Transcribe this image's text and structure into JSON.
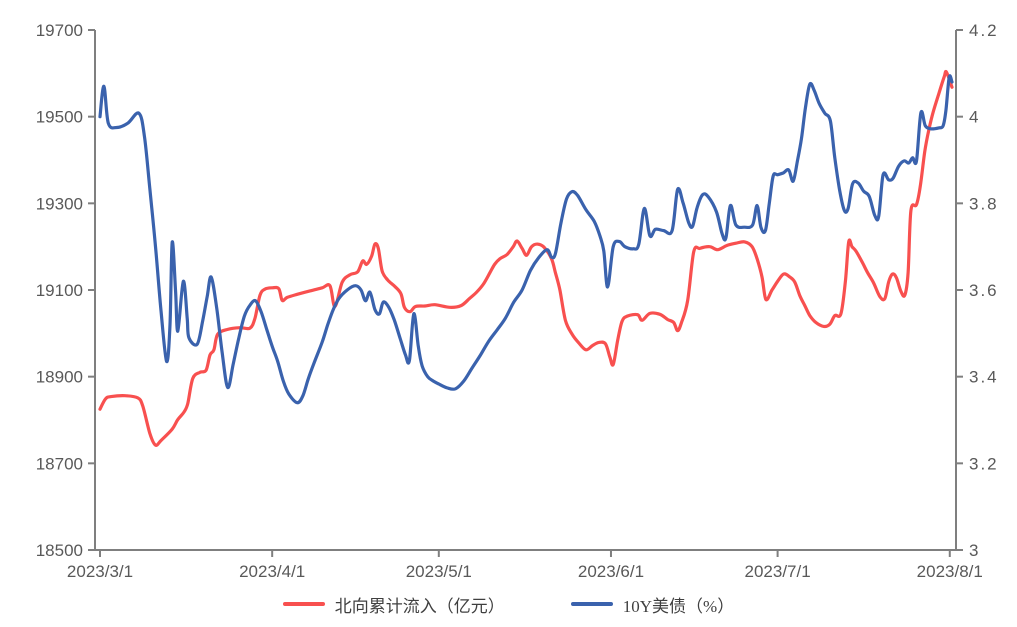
{
  "page": {
    "background": "#ffffff",
    "title": ""
  },
  "colors": {
    "axis_line": "#7f7f7f",
    "tick_label": "#595959",
    "legend_text": "#3f3f3f",
    "series_red": "#f8504f",
    "series_blue": "#3a62ad"
  },
  "legend": {
    "items": [
      {
        "label": "北向累计流入（亿元）",
        "color": "#f8504f"
      },
      {
        "label": "10Y美债（%）",
        "color": "#3a62ad"
      }
    ]
  },
  "chart_data": {
    "type": "line",
    "title": "",
    "xlabel": "",
    "ylabel_left": "",
    "ylabel_right": "",
    "grid": false,
    "legend_position": "bottom",
    "x_axis": {
      "tick_labels": [
        "2023/3/1",
        "2023/4/1",
        "2023/5/1",
        "2023/6/1",
        "2023/7/1",
        "2023/8/1"
      ],
      "tick_days": [
        0,
        31,
        61,
        92,
        122,
        153
      ],
      "domain_days": [
        0,
        153.4
      ]
    },
    "left_axis": {
      "min": 18500,
      "max": 19700,
      "tick_values": [
        18500,
        18700,
        18900,
        19100,
        19300,
        19500,
        19700
      ],
      "tick_labels": [
        "18500",
        "18700",
        "18900",
        "19100",
        "19300",
        "19500",
        "19700"
      ]
    },
    "right_axis": {
      "min": 3.0,
      "max": 4.2,
      "tick_values": [
        3.0,
        3.2,
        3.4,
        3.6,
        3.8,
        4.0,
        4.2
      ],
      "tick_labels": [
        "3",
        "3.2",
        "3.4",
        "3.6",
        "3.8",
        "4",
        "4.2"
      ]
    },
    "series": [
      {
        "name": "北向累计流入（亿元）",
        "axis": "left",
        "color": "#f8504f",
        "points": [
          [
            0,
            18825
          ],
          [
            1,
            18849
          ],
          [
            2,
            18854
          ],
          [
            4.5,
            18856
          ],
          [
            6.8,
            18851
          ],
          [
            7.7,
            18832
          ],
          [
            9,
            18768
          ],
          [
            10,
            18742
          ],
          [
            11,
            18753
          ],
          [
            13,
            18779
          ],
          [
            14,
            18801
          ],
          [
            15.1,
            18818
          ],
          [
            15.8,
            18838
          ],
          [
            16.7,
            18896
          ],
          [
            18,
            18910
          ],
          [
            19.1,
            18915
          ],
          [
            19.8,
            18950
          ],
          [
            20.5,
            18962
          ],
          [
            21.2,
            18998
          ],
          [
            23,
            19009
          ],
          [
            25.2,
            19013
          ],
          [
            27,
            19012
          ],
          [
            27.9,
            19035
          ],
          [
            28.8,
            19088
          ],
          [
            29.7,
            19102
          ],
          [
            31,
            19105
          ],
          [
            32.2,
            19103
          ],
          [
            32.8,
            19076
          ],
          [
            33.7,
            19083
          ],
          [
            35.5,
            19090
          ],
          [
            37.8,
            19098
          ],
          [
            40,
            19105
          ],
          [
            41.4,
            19110
          ],
          [
            42.3,
            19062
          ],
          [
            43.6,
            19118
          ],
          [
            45,
            19135
          ],
          [
            46.4,
            19142
          ],
          [
            47.3,
            19167
          ],
          [
            48,
            19159
          ],
          [
            48.9,
            19178
          ],
          [
            49.5,
            19206
          ],
          [
            50.1,
            19196
          ],
          [
            50.8,
            19144
          ],
          [
            51.8,
            19123
          ],
          [
            53.1,
            19108
          ],
          [
            54.2,
            19091
          ],
          [
            54.8,
            19060
          ],
          [
            55.8,
            19050
          ],
          [
            56.8,
            19062
          ],
          [
            58.5,
            19063
          ],
          [
            60.3,
            19066
          ],
          [
            63,
            19060
          ],
          [
            65,
            19064
          ],
          [
            66.5,
            19080
          ],
          [
            67.8,
            19095
          ],
          [
            69,
            19113
          ],
          [
            70.2,
            19140
          ],
          [
            71.1,
            19160
          ],
          [
            72,
            19172
          ],
          [
            73.3,
            19182
          ],
          [
            74.4,
            19200
          ],
          [
            75.1,
            19213
          ],
          [
            76,
            19196
          ],
          [
            76.8,
            19180
          ],
          [
            77.7,
            19200
          ],
          [
            78.8,
            19206
          ],
          [
            80,
            19198
          ],
          [
            81.3,
            19172
          ],
          [
            82,
            19140
          ],
          [
            82.8,
            19100
          ],
          [
            83.8,
            19030
          ],
          [
            85,
            18998
          ],
          [
            86.2,
            18978
          ],
          [
            87.5,
            18962
          ],
          [
            88.7,
            18972
          ],
          [
            89.8,
            18979
          ],
          [
            91,
            18976
          ],
          [
            91.8,
            18945
          ],
          [
            92.4,
            18928
          ],
          [
            93.2,
            18983
          ],
          [
            94,
            19028
          ],
          [
            95,
            19040
          ],
          [
            96.8,
            19043
          ],
          [
            97.6,
            19030
          ],
          [
            99,
            19046
          ],
          [
            100.8,
            19044
          ],
          [
            102.2,
            19032
          ],
          [
            103.3,
            19025
          ],
          [
            104,
            19006
          ],
          [
            104.7,
            19025
          ],
          [
            105.8,
            19075
          ],
          [
            106.9,
            19188
          ],
          [
            108,
            19196
          ],
          [
            109.8,
            19200
          ],
          [
            111.2,
            19193
          ],
          [
            112.9,
            19203
          ],
          [
            114.5,
            19208
          ],
          [
            116.1,
            19211
          ],
          [
            117.4,
            19200
          ],
          [
            118.3,
            19172
          ],
          [
            119.2,
            19130
          ],
          [
            119.9,
            19078
          ],
          [
            121,
            19100
          ],
          [
            122,
            19120
          ],
          [
            123.1,
            19137
          ],
          [
            124.2,
            19130
          ],
          [
            125.1,
            19118
          ],
          [
            126,
            19087
          ],
          [
            126.9,
            19064
          ],
          [
            127.8,
            19041
          ],
          [
            128.9,
            19025
          ],
          [
            130.3,
            19016
          ],
          [
            131.4,
            19021
          ],
          [
            132.3,
            19041
          ],
          [
            133.4,
            19045
          ],
          [
            134.2,
            19120
          ],
          [
            134.8,
            19211
          ],
          [
            135.4,
            19200
          ],
          [
            136.1,
            19190
          ],
          [
            137.2,
            19165
          ],
          [
            138.2,
            19140
          ],
          [
            139.3,
            19116
          ],
          [
            140.4,
            19085
          ],
          [
            141.3,
            19080
          ],
          [
            142,
            19119
          ],
          [
            142.7,
            19137
          ],
          [
            143.4,
            19128
          ],
          [
            144.2,
            19097
          ],
          [
            144.9,
            19088
          ],
          [
            145.5,
            19140
          ],
          [
            146,
            19283
          ],
          [
            147,
            19297
          ],
          [
            147.7,
            19340
          ],
          [
            148.5,
            19420
          ],
          [
            149.2,
            19468
          ],
          [
            150,
            19510
          ],
          [
            151,
            19552
          ],
          [
            152,
            19592
          ],
          [
            152.4,
            19603
          ],
          [
            153.4,
            19568
          ]
        ]
      },
      {
        "name": "10Y美债（%）",
        "axis": "right",
        "color": "#3a62ad",
        "points": [
          [
            0,
            4.0
          ],
          [
            0.7,
            4.07
          ],
          [
            1.5,
            3.985
          ],
          [
            3,
            3.975
          ],
          [
            5,
            3.985
          ],
          [
            7,
            4.008
          ],
          [
            8,
            3.955
          ],
          [
            9,
            3.83
          ],
          [
            10,
            3.7
          ],
          [
            11,
            3.55
          ],
          [
            12,
            3.435
          ],
          [
            12.6,
            3.52
          ],
          [
            13,
            3.71
          ],
          [
            13.6,
            3.6
          ],
          [
            14,
            3.505
          ],
          [
            15,
            3.62
          ],
          [
            15.7,
            3.535
          ],
          [
            16,
            3.49
          ],
          [
            17.5,
            3.475
          ],
          [
            18.5,
            3.53
          ],
          [
            19.3,
            3.585
          ],
          [
            20,
            3.63
          ],
          [
            21,
            3.56
          ],
          [
            22,
            3.455
          ],
          [
            23,
            3.375
          ],
          [
            24,
            3.43
          ],
          [
            25,
            3.49
          ],
          [
            26,
            3.54
          ],
          [
            27,
            3.565
          ],
          [
            28,
            3.575
          ],
          [
            29,
            3.55
          ],
          [
            30,
            3.51
          ],
          [
            31,
            3.47
          ],
          [
            32,
            3.435
          ],
          [
            33,
            3.39
          ],
          [
            34,
            3.36
          ],
          [
            35.5,
            3.34
          ],
          [
            36.5,
            3.355
          ],
          [
            37.5,
            3.395
          ],
          [
            38.5,
            3.43
          ],
          [
            40,
            3.48
          ],
          [
            41,
            3.52
          ],
          [
            42,
            3.555
          ],
          [
            43,
            3.58
          ],
          [
            44.5,
            3.6
          ],
          [
            46,
            3.61
          ],
          [
            47,
            3.6
          ],
          [
            47.8,
            3.575
          ],
          [
            48.6,
            3.595
          ],
          [
            49.5,
            3.555
          ],
          [
            50.3,
            3.545
          ],
          [
            51,
            3.572
          ],
          [
            52,
            3.56
          ],
          [
            53,
            3.53
          ],
          [
            54,
            3.49
          ],
          [
            55,
            3.45
          ],
          [
            55.7,
            3.437
          ],
          [
            56.5,
            3.545
          ],
          [
            57.3,
            3.47
          ],
          [
            58,
            3.425
          ],
          [
            59,
            3.4
          ],
          [
            60,
            3.39
          ],
          [
            61,
            3.383
          ],
          [
            62.5,
            3.374
          ],
          [
            64,
            3.372
          ],
          [
            65.5,
            3.39
          ],
          [
            67,
            3.42
          ],
          [
            68.5,
            3.45
          ],
          [
            70,
            3.482
          ],
          [
            71.5,
            3.508
          ],
          [
            73,
            3.535
          ],
          [
            74.5,
            3.572
          ],
          [
            76,
            3.6
          ],
          [
            77.5,
            3.645
          ],
          [
            79,
            3.675
          ],
          [
            80.5,
            3.693
          ],
          [
            81.3,
            3.676
          ],
          [
            82,
            3.684
          ],
          [
            83,
            3.755
          ],
          [
            84,
            3.81
          ],
          [
            85,
            3.827
          ],
          [
            86,
            3.818
          ],
          [
            87.5,
            3.785
          ],
          [
            89,
            3.758
          ],
          [
            90,
            3.725
          ],
          [
            90.7,
            3.69
          ],
          [
            91.4,
            3.607
          ],
          [
            92.4,
            3.7
          ],
          [
            93.5,
            3.712
          ],
          [
            94.5,
            3.7
          ],
          [
            96,
            3.695
          ],
          [
            97,
            3.705
          ],
          [
            98,
            3.788
          ],
          [
            99,
            3.725
          ],
          [
            100,
            3.74
          ],
          [
            101.5,
            3.737
          ],
          [
            103,
            3.737
          ],
          [
            104,
            3.832
          ],
          [
            105,
            3.8
          ],
          [
            106,
            3.755
          ],
          [
            106.7,
            3.747
          ],
          [
            107.5,
            3.79
          ],
          [
            108.5,
            3.82
          ],
          [
            109.5,
            3.815
          ],
          [
            111,
            3.78
          ],
          [
            112,
            3.73
          ],
          [
            112.7,
            3.72
          ],
          [
            113.5,
            3.795
          ],
          [
            114.5,
            3.75
          ],
          [
            116,
            3.745
          ],
          [
            117.5,
            3.75
          ],
          [
            118.3,
            3.795
          ],
          [
            119,
            3.745
          ],
          [
            119.8,
            3.737
          ],
          [
            120.5,
            3.8
          ],
          [
            121.2,
            3.863
          ],
          [
            122,
            3.866
          ],
          [
            123,
            3.87
          ],
          [
            124,
            3.877
          ],
          [
            124.8,
            3.851
          ],
          [
            125.6,
            3.9
          ],
          [
            126.3,
            3.95
          ],
          [
            127,
            4.02
          ],
          [
            127.8,
            4.075
          ],
          [
            128.6,
            4.06
          ],
          [
            129.5,
            4.03
          ],
          [
            130.5,
            4.008
          ],
          [
            131.5,
            3.99
          ],
          [
            132.3,
            3.905
          ],
          [
            133.2,
            3.828
          ],
          [
            134,
            3.784
          ],
          [
            134.7,
            3.788
          ],
          [
            135.5,
            3.845
          ],
          [
            136.5,
            3.847
          ],
          [
            137.5,
            3.828
          ],
          [
            138.5,
            3.816
          ],
          [
            139.5,
            3.772
          ],
          [
            140.2,
            3.77
          ],
          [
            141,
            3.866
          ],
          [
            142,
            3.854
          ],
          [
            142.8,
            3.858
          ],
          [
            143.8,
            3.886
          ],
          [
            144.8,
            3.898
          ],
          [
            145.6,
            3.893
          ],
          [
            146.3,
            3.905
          ],
          [
            147,
            3.898
          ],
          [
            147.8,
            4.009
          ],
          [
            148.6,
            3.979
          ],
          [
            149.6,
            3.972
          ],
          [
            151,
            3.974
          ],
          [
            151.8,
            3.979
          ],
          [
            152.3,
            4.014
          ],
          [
            152.9,
            4.091
          ],
          [
            153.4,
            4.08
          ]
        ]
      }
    ]
  }
}
